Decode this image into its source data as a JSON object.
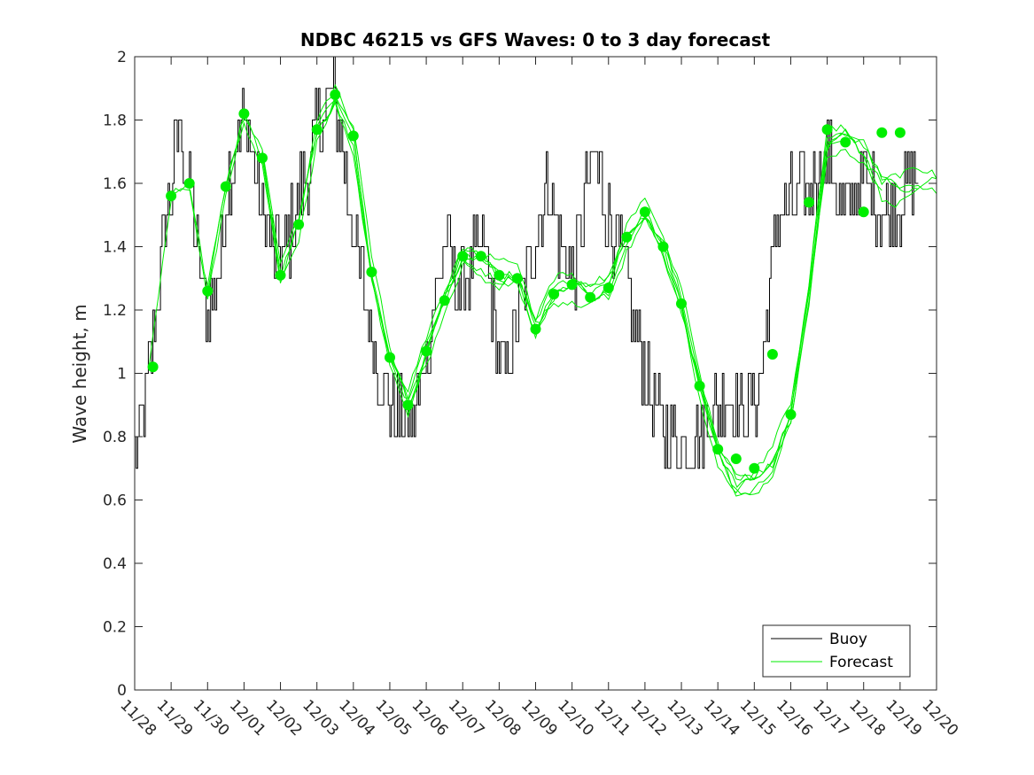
{
  "chart_data": {
    "type": "line",
    "title": "NDBC 46215 vs GFS Waves: 0 to 3 day forecast",
    "xlabel": "",
    "ylabel": "Wave height, m",
    "xlim": [
      0,
      22
    ],
    "ylim": [
      0,
      2
    ],
    "x_ticks": [
      0,
      1,
      2,
      3,
      4,
      5,
      6,
      7,
      8,
      9,
      10,
      11,
      12,
      13,
      14,
      15,
      16,
      17,
      18,
      19,
      20,
      21,
      22
    ],
    "x_tick_labels": [
      "11/28",
      "11/29",
      "11/30",
      "12/01",
      "12/02",
      "12/03",
      "12/04",
      "12/05",
      "12/06",
      "12/07",
      "12/08",
      "12/09",
      "12/10",
      "12/11",
      "12/12",
      "12/13",
      "12/14",
      "12/15",
      "12/16",
      "12/17",
      "12/18",
      "12/19",
      "12/20"
    ],
    "y_ticks": [
      0,
      0.2,
      0.4,
      0.6,
      0.8,
      1.0,
      1.2,
      1.4,
      1.6,
      1.8,
      2.0
    ],
    "y_tick_labels": [
      "0",
      "0.2",
      "0.4",
      "0.6",
      "0.8",
      "1",
      "1.2",
      "1.4",
      "1.6",
      "1.8",
      "2"
    ],
    "grid": false,
    "legend": {
      "position": "bottom-right",
      "entries": [
        "Buoy",
        "Forecast"
      ]
    },
    "colors": {
      "buoy": "#000000",
      "forecast": "#00ee00",
      "axis": "#262626"
    },
    "buoy_anchors": {
      "x": [
        0,
        0.1,
        0.4,
        0.7,
        1.0,
        1.2,
        1.5,
        1.8,
        2.0,
        2.3,
        2.6,
        3.0,
        3.2,
        3.5,
        3.8,
        4.0,
        4.3,
        4.6,
        5.0,
        5.3,
        5.5,
        5.8,
        6.0,
        6.3,
        6.6,
        7.0,
        7.3,
        7.6,
        7.9,
        8.2,
        8.5,
        8.8,
        9.0,
        9.3,
        9.6,
        9.9,
        10.2,
        10.6,
        11.0,
        11.3,
        11.6,
        12.0,
        12.3,
        12.6,
        12.9,
        13.3,
        13.6,
        14.0,
        14.3,
        14.6,
        15.0,
        15.3,
        15.6,
        16.0,
        16.3,
        16.6,
        17.0,
        17.3,
        17.6,
        18.0,
        18.3,
        18.6,
        19.0,
        19.2,
        19.4,
        19.7,
        20.0,
        20.3,
        20.6,
        21.0,
        21.5
      ],
      "y": [
        0.72,
        0.8,
        1.0,
        1.35,
        1.6,
        1.8,
        1.6,
        1.3,
        1.2,
        1.3,
        1.65,
        1.8,
        1.75,
        1.5,
        1.4,
        1.35,
        1.45,
        1.6,
        1.75,
        1.88,
        1.85,
        1.6,
        1.45,
        1.25,
        1.05,
        0.9,
        0.85,
        0.8,
        1.0,
        1.2,
        1.42,
        1.3,
        1.25,
        1.35,
        1.4,
        1.1,
        1.0,
        1.2,
        1.45,
        1.6,
        1.45,
        1.3,
        1.5,
        1.7,
        1.55,
        1.4,
        1.2,
        1.0,
        0.88,
        0.8,
        0.75,
        0.8,
        0.85,
        0.9,
        0.95,
        0.85,
        0.9,
        1.1,
        1.5,
        1.55,
        1.55,
        1.6,
        1.7,
        1.6,
        1.5,
        1.55,
        1.6,
        1.55,
        1.5,
        1.55,
        1.6
      ]
    },
    "forecast_anchors": {
      "x": [
        0.4,
        1.0,
        1.5,
        2.0,
        2.5,
        3.0,
        3.5,
        4.0,
        4.5,
        5.0,
        5.5,
        6.0,
        6.5,
        7.0,
        7.5,
        8.0,
        8.5,
        9.0,
        9.5,
        10.0,
        10.5,
        11.0,
        11.5,
        12.0,
        12.5,
        13.0,
        13.5,
        14.0,
        14.5,
        15.0,
        15.5,
        16.0,
        16.5,
        17.0,
        17.5,
        18.0,
        18.5,
        19.0,
        19.5,
        20.0,
        20.5,
        21.0,
        21.5,
        22.0
      ],
      "y": [
        1.02,
        1.56,
        1.6,
        1.26,
        1.59,
        1.82,
        1.68,
        1.31,
        1.47,
        1.77,
        1.88,
        1.75,
        1.32,
        1.05,
        0.9,
        1.07,
        1.23,
        1.37,
        1.36,
        1.31,
        1.31,
        1.14,
        1.25,
        1.28,
        1.25,
        1.28,
        1.43,
        1.51,
        1.4,
        1.22,
        0.96,
        0.75,
        0.65,
        0.66,
        0.72,
        0.87,
        1.25,
        1.72,
        1.75,
        1.7,
        1.6,
        1.58,
        1.6,
        1.6
      ]
    },
    "forecast_points": {
      "x": [
        0.5,
        1.0,
        1.5,
        2.0,
        2.5,
        3.0,
        3.5,
        4.0,
        4.5,
        5.0,
        5.5,
        6.0,
        6.5,
        7.0,
        7.5,
        8.0,
        8.5,
        9.0,
        9.5,
        10.0,
        10.5,
        11.0,
        11.5,
        12.0,
        12.5,
        13.0,
        13.5,
        14.0,
        14.5,
        15.0,
        15.5,
        16.0,
        16.5,
        17.0,
        17.5,
        18.0,
        18.5,
        19.0,
        19.5,
        20.0,
        20.5,
        21.0
      ],
      "y": [
        1.02,
        1.56,
        1.6,
        1.26,
        1.59,
        1.82,
        1.68,
        1.31,
        1.47,
        1.77,
        1.88,
        1.75,
        1.32,
        1.05,
        0.9,
        1.07,
        1.23,
        1.37,
        1.37,
        1.31,
        1.3,
        1.14,
        1.25,
        1.28,
        1.24,
        1.27,
        1.43,
        1.51,
        1.4,
        1.22,
        0.96,
        0.76,
        0.73,
        0.7,
        1.06,
        0.87,
        1.54,
        1.77,
        1.73,
        1.51,
        1.76,
        1.76
      ]
    }
  }
}
